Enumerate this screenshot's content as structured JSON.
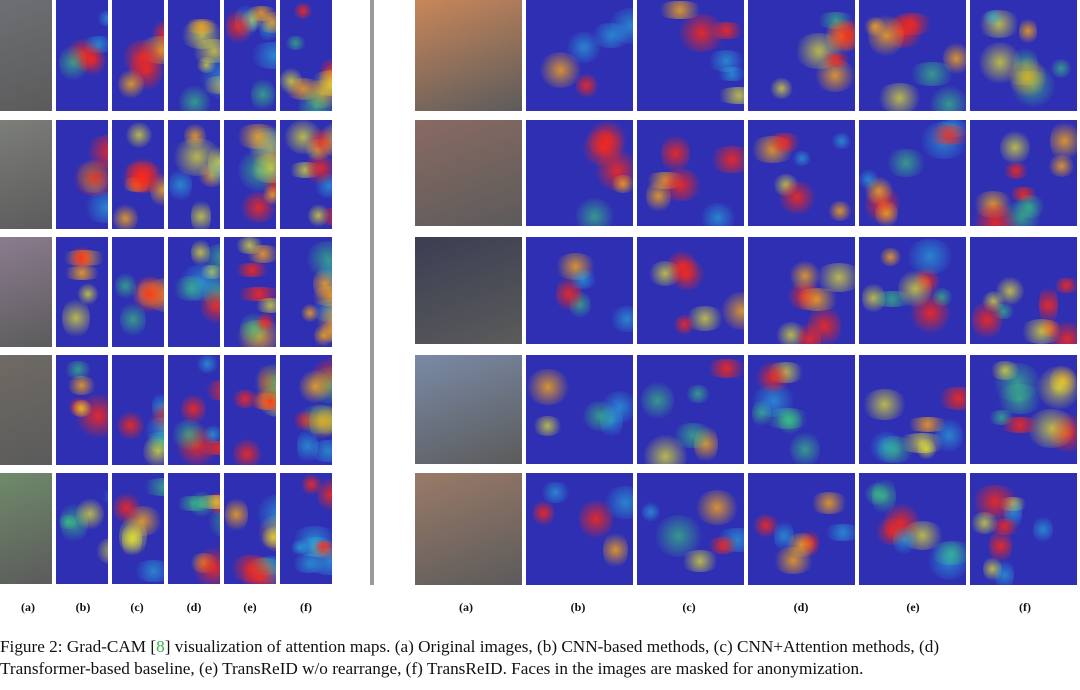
{
  "figure": {
    "person_column_labels": [
      "(a)",
      "(b)",
      "(c)",
      "(d)",
      "(e)",
      "(f)"
    ],
    "vehicle_column_labels": [
      "(a)",
      "(b)",
      "(c)",
      "(d)",
      "(e)",
      "(f)"
    ],
    "caption": {
      "prefix": "Figure 2: Grad-CAM [",
      "ref": "8",
      "line1_rest": "] visualization of attention maps. (a) Original images, (b) CNN-based methods, (c) CNN+Attention methods, (d)",
      "line2": "Transformer-based baseline, (e) TransReID w/o rearrange, (f) TransReID. Faces in the images are masked for anonymization."
    },
    "colors": {
      "background": "#ffffff",
      "divider": "#9a9a9a",
      "heatmap_base": "#2e2fb3",
      "reference_link": "#3fb34a"
    }
  }
}
